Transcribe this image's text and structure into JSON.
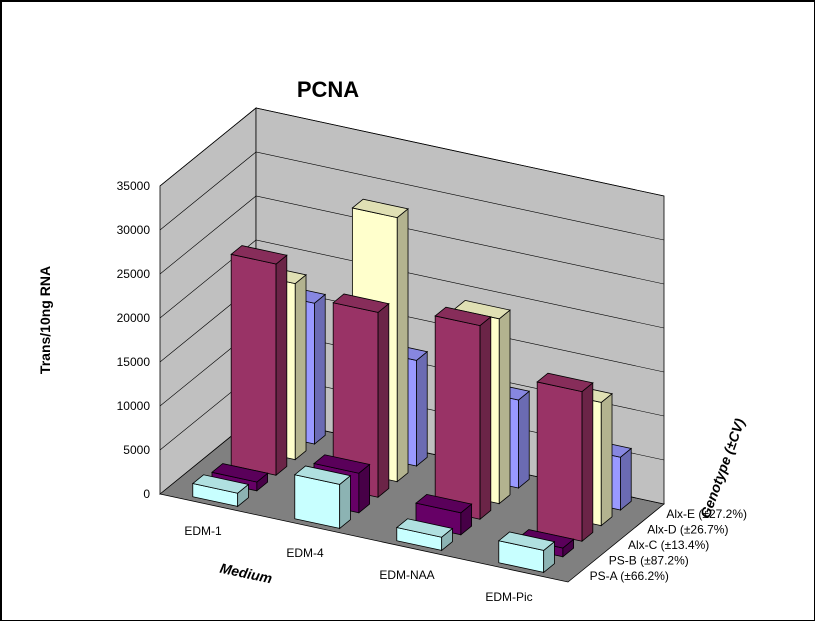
{
  "chart_data": {
    "type": "bar",
    "subtype": "3d-column",
    "title": "PCNA",
    "ylabel": "Trans/10ng RNA",
    "xlabel": "Medium",
    "zlabel": "Genotype  (±CV)",
    "ylim": [
      0,
      35000
    ],
    "yticks": [
      "0",
      "5000",
      "10000",
      "15000",
      "20000",
      "25000",
      "30000",
      "35000"
    ],
    "categories": [
      "EDM-1",
      "EDM-4",
      "EDM-NAA",
      "EDM-Pic"
    ],
    "series": [
      {
        "name": "PS-A (±66.2%)",
        "color": "#c8ffff",
        "values": [
          1500,
          5000,
          1500,
          2500
        ]
      },
      {
        "name": "PS-B (±87.2%)",
        "color": "#660066",
        "values": [
          1000,
          4500,
          2500,
          1000
        ]
      },
      {
        "name": "Alx-C (±13.4%)",
        "color": "#993366",
        "values": [
          24000,
          21000,
          22000,
          17000
        ]
      },
      {
        "name": "Alx-D (±26.7%)",
        "color": "#ffffcc",
        "values": [
          20000,
          30000,
          21000,
          14000
        ]
      },
      {
        "name": "Alx-E (±27.2%)",
        "color": "#9999ff",
        "values": [
          16000,
          12000,
          10000,
          6000
        ]
      }
    ],
    "grid": true,
    "legend": "depth-axis-labels"
  }
}
